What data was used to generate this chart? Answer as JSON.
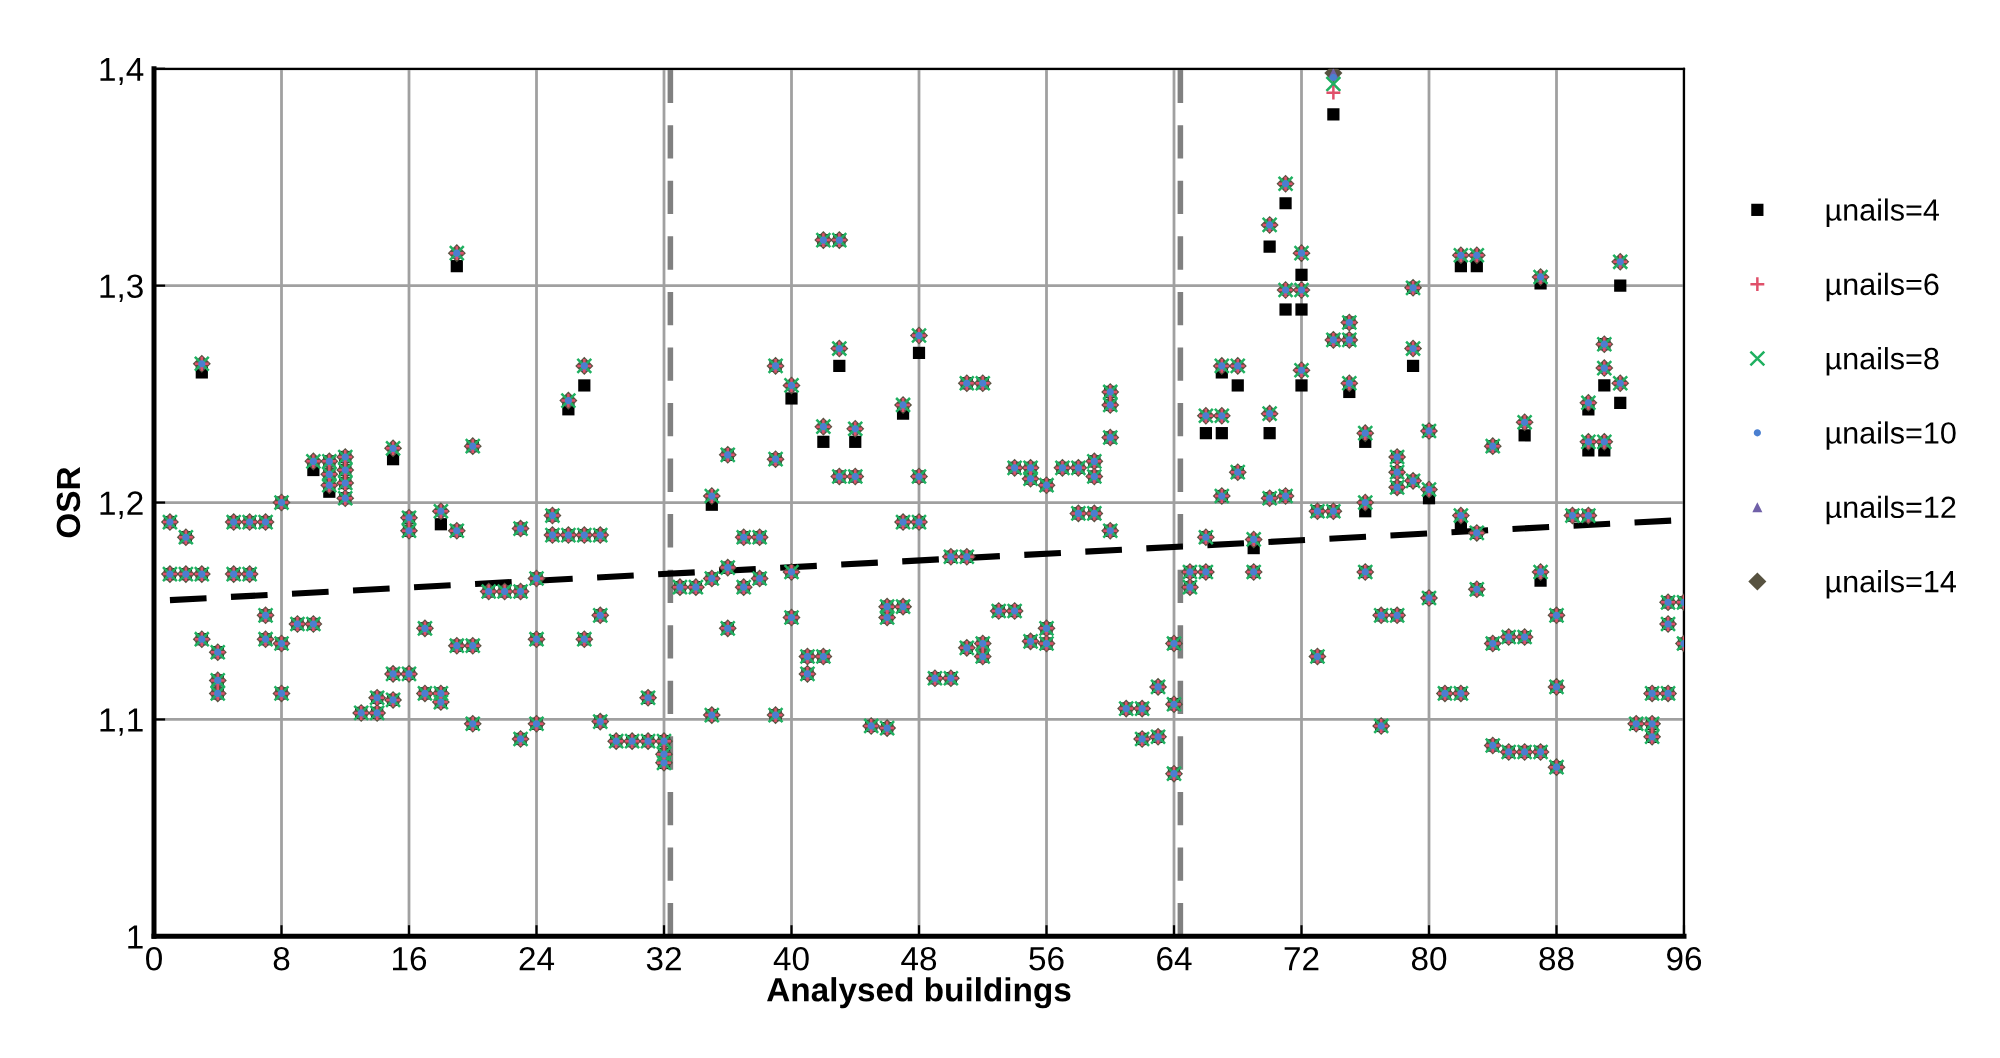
{
  "chart_data": {
    "type": "scatter",
    "xlabel": "Analysed buildings",
    "ylabel": "OSR",
    "xlim": [
      0,
      96
    ],
    "xticks": [
      0,
      8,
      16,
      24,
      32,
      40,
      48,
      56,
      64,
      72,
      80,
      88,
      96
    ],
    "ylim": [
      1,
      1.4
    ],
    "yticks": [
      1,
      {
        "value": 1.1,
        "label": "1,1"
      },
      {
        "value": 1.2,
        "label": "1,2"
      },
      {
        "value": 1.3,
        "label": "1,3"
      },
      {
        "value": 1.4,
        "label": "1,4"
      }
    ],
    "grid": true,
    "legend": "right",
    "x": [
      1,
      1,
      2,
      2,
      3,
      3,
      3,
      4,
      4,
      4,
      5,
      5,
      6,
      6,
      7,
      7,
      7,
      8,
      8,
      8,
      9,
      10,
      10,
      11,
      11,
      11,
      12,
      12,
      12,
      12,
      13,
      14,
      14,
      15,
      15,
      15,
      16,
      16,
      16,
      17,
      17,
      18,
      18,
      18,
      19,
      19,
      19,
      20,
      20,
      20,
      21,
      22,
      23,
      23,
      23,
      24,
      24,
      24,
      25,
      25,
      26,
      26,
      27,
      27,
      27,
      28,
      28,
      28,
      29,
      30,
      31,
      31,
      32,
      32,
      32,
      33,
      34,
      35,
      35,
      35,
      36,
      36,
      36,
      37,
      37,
      38,
      38,
      39,
      39,
      39,
      40,
      40,
      40,
      41,
      41,
      42,
      42,
      42,
      43,
      43,
      43,
      44,
      44,
      45,
      46,
      46,
      46,
      47,
      47,
      47,
      48,
      48,
      48,
      49,
      50,
      50,
      51,
      51,
      51,
      52,
      52,
      52,
      53,
      54,
      54,
      55,
      55,
      55,
      56,
      56,
      56,
      57,
      58,
      58,
      59,
      59,
      59,
      60,
      60,
      60,
      60,
      61,
      62,
      62,
      63,
      63,
      64,
      64,
      64,
      65,
      65,
      66,
      66,
      66,
      67,
      67,
      67,
      68,
      68,
      69,
      69,
      70,
      70,
      70,
      71,
      71,
      71,
      72,
      72,
      72,
      73,
      73,
      74,
      74,
      74,
      75,
      75,
      75,
      76,
      76,
      76,
      77,
      77,
      78,
      78,
      78,
      78,
      79,
      79,
      79,
      80,
      80,
      80,
      81,
      82,
      82,
      82,
      83,
      83,
      83,
      84,
      84,
      84,
      85,
      85,
      86,
      86,
      86,
      87,
      87,
      87,
      88,
      88,
      88,
      89,
      90,
      90,
      90,
      91,
      91,
      91,
      92,
      92,
      93,
      94,
      94,
      94,
      95,
      95,
      95,
      96,
      96
    ],
    "series": [
      {
        "name": "µnails=4",
        "color": "#000000",
        "marker": "square",
        "values": [
          1.191,
          1.167,
          1.184,
          1.167,
          1.26,
          1.167,
          1.137,
          1.131,
          1.118,
          1.112,
          1.191,
          1.167,
          1.191,
          1.167,
          1.191,
          1.148,
          1.137,
          1.2,
          1.135,
          1.112,
          1.144,
          1.215,
          1.144,
          1.219,
          1.213,
          1.205,
          1.221,
          1.215,
          1.209,
          1.202,
          1.103,
          1.11,
          1.103,
          1.22,
          1.121,
          1.109,
          1.193,
          1.187,
          1.121,
          1.142,
          1.112,
          1.19,
          1.112,
          1.108,
          1.309,
          1.187,
          1.134,
          1.226,
          1.134,
          1.098,
          1.159,
          1.159,
          1.188,
          1.159,
          1.091,
          1.165,
          1.137,
          1.098,
          1.194,
          1.185,
          1.243,
          1.185,
          1.254,
          1.185,
          1.137,
          1.185,
          1.148,
          1.099,
          1.09,
          1.09,
          1.11,
          1.09,
          1.09,
          1.084,
          1.08,
          1.161,
          1.161,
          1.199,
          1.165,
          1.102,
          1.222,
          1.17,
          1.142,
          1.184,
          1.161,
          1.184,
          1.165,
          1.263,
          1.22,
          1.102,
          1.248,
          1.168,
          1.147,
          1.129,
          1.121,
          1.321,
          1.228,
          1.129,
          1.321,
          1.263,
          1.212,
          1.228,
          1.212,
          1.097,
          1.152,
          1.147,
          1.096,
          1.241,
          1.191,
          1.152,
          1.269,
          1.212,
          1.191,
          1.119,
          1.175,
          1.119,
          1.255,
          1.175,
          1.133,
          1.255,
          1.135,
          1.129,
          1.15,
          1.216,
          1.15,
          1.216,
          1.211,
          1.136,
          1.208,
          1.142,
          1.135,
          1.216,
          1.216,
          1.195,
          1.219,
          1.212,
          1.195,
          1.251,
          1.245,
          1.23,
          1.187,
          1.105,
          1.105,
          1.091,
          1.115,
          1.092,
          1.135,
          1.107,
          1.075,
          1.168,
          1.161,
          1.232,
          1.184,
          1.168,
          1.26,
          1.232,
          1.203,
          1.254,
          1.214,
          1.179,
          1.168,
          1.318,
          1.232,
          1.202,
          1.338,
          1.289,
          1.203,
          1.305,
          1.289,
          1.254,
          1.196,
          1.129,
          1.379,
          1.275,
          1.196,
          1.283,
          1.275,
          1.251,
          1.228,
          1.196,
          1.168,
          1.148,
          1.097,
          1.221,
          1.214,
          1.207,
          1.148,
          1.299,
          1.263,
          1.21,
          1.233,
          1.202,
          1.156,
          1.112,
          1.309,
          1.19,
          1.112,
          1.309,
          1.186,
          1.16,
          1.226,
          1.135,
          1.088,
          1.138,
          1.085,
          1.231,
          1.138,
          1.085,
          1.301,
          1.164,
          1.085,
          1.148,
          1.115,
          1.078,
          1.194,
          1.243,
          1.224,
          1.194,
          1.273,
          1.254,
          1.224,
          1.3,
          1.246,
          1.098,
          1.112,
          1.098,
          1.092,
          1.154,
          1.144,
          1.112,
          1.154,
          1.135
        ]
      },
      {
        "name": "µnails=6",
        "color": "#e0506a",
        "marker": "plus",
        "values": [
          1.191,
          1.167,
          1.184,
          1.167,
          1.264,
          1.167,
          1.137,
          1.131,
          1.118,
          1.112,
          1.191,
          1.167,
          1.191,
          1.167,
          1.191,
          1.148,
          1.137,
          1.2,
          1.135,
          1.112,
          1.144,
          1.219,
          1.144,
          1.219,
          1.213,
          1.208,
          1.221,
          1.215,
          1.209,
          1.202,
          1.103,
          1.11,
          1.103,
          1.225,
          1.121,
          1.109,
          1.193,
          1.187,
          1.121,
          1.142,
          1.112,
          1.196,
          1.112,
          1.108,
          1.315,
          1.187,
          1.134,
          1.226,
          1.134,
          1.098,
          1.159,
          1.159,
          1.188,
          1.159,
          1.091,
          1.165,
          1.137,
          1.098,
          1.194,
          1.185,
          1.247,
          1.185,
          1.263,
          1.185,
          1.137,
          1.185,
          1.148,
          1.099,
          1.09,
          1.09,
          1.11,
          1.09,
          1.09,
          1.084,
          1.08,
          1.161,
          1.161,
          1.203,
          1.165,
          1.102,
          1.222,
          1.17,
          1.142,
          1.184,
          1.161,
          1.184,
          1.165,
          1.263,
          1.22,
          1.102,
          1.254,
          1.168,
          1.147,
          1.129,
          1.121,
          1.321,
          1.235,
          1.129,
          1.321,
          1.271,
          1.212,
          1.234,
          1.212,
          1.097,
          1.152,
          1.147,
          1.096,
          1.245,
          1.191,
          1.152,
          1.277,
          1.212,
          1.191,
          1.119,
          1.175,
          1.119,
          1.255,
          1.175,
          1.133,
          1.255,
          1.135,
          1.129,
          1.15,
          1.216,
          1.15,
          1.216,
          1.211,
          1.136,
          1.208,
          1.142,
          1.135,
          1.216,
          1.216,
          1.195,
          1.219,
          1.212,
          1.195,
          1.251,
          1.245,
          1.23,
          1.187,
          1.105,
          1.105,
          1.091,
          1.115,
          1.092,
          1.135,
          1.107,
          1.075,
          1.168,
          1.161,
          1.24,
          1.184,
          1.168,
          1.263,
          1.24,
          1.203,
          1.263,
          1.214,
          1.183,
          1.168,
          1.328,
          1.241,
          1.202,
          1.347,
          1.298,
          1.203,
          1.315,
          1.298,
          1.261,
          1.196,
          1.129,
          1.389,
          1.275,
          1.196,
          1.283,
          1.275,
          1.255,
          1.232,
          1.2,
          1.168,
          1.148,
          1.097,
          1.221,
          1.214,
          1.207,
          1.148,
          1.299,
          1.271,
          1.21,
          1.233,
          1.206,
          1.156,
          1.112,
          1.314,
          1.194,
          1.112,
          1.314,
          1.186,
          1.16,
          1.226,
          1.135,
          1.088,
          1.138,
          1.085,
          1.237,
          1.138,
          1.085,
          1.304,
          1.168,
          1.085,
          1.148,
          1.115,
          1.078,
          1.194,
          1.246,
          1.228,
          1.194,
          1.273,
          1.262,
          1.228,
          1.311,
          1.255,
          1.098,
          1.112,
          1.098,
          1.092,
          1.154,
          1.144,
          1.112,
          1.154,
          1.135
        ]
      },
      {
        "name": "µnails=8",
        "color": "#1fb060",
        "marker": "cross",
        "values": [
          1.191,
          1.167,
          1.184,
          1.167,
          1.264,
          1.167,
          1.137,
          1.131,
          1.118,
          1.112,
          1.191,
          1.167,
          1.191,
          1.167,
          1.191,
          1.148,
          1.137,
          1.2,
          1.135,
          1.112,
          1.144,
          1.219,
          1.144,
          1.219,
          1.213,
          1.208,
          1.221,
          1.215,
          1.209,
          1.202,
          1.103,
          1.11,
          1.103,
          1.225,
          1.121,
          1.109,
          1.193,
          1.187,
          1.121,
          1.142,
          1.112,
          1.196,
          1.112,
          1.108,
          1.315,
          1.187,
          1.134,
          1.226,
          1.134,
          1.098,
          1.159,
          1.159,
          1.188,
          1.159,
          1.091,
          1.165,
          1.137,
          1.098,
          1.194,
          1.185,
          1.247,
          1.185,
          1.263,
          1.185,
          1.137,
          1.185,
          1.148,
          1.099,
          1.09,
          1.09,
          1.11,
          1.09,
          1.09,
          1.084,
          1.08,
          1.161,
          1.161,
          1.203,
          1.165,
          1.102,
          1.222,
          1.17,
          1.142,
          1.184,
          1.161,
          1.184,
          1.165,
          1.263,
          1.22,
          1.102,
          1.254,
          1.168,
          1.147,
          1.129,
          1.121,
          1.321,
          1.235,
          1.129,
          1.321,
          1.271,
          1.212,
          1.234,
          1.212,
          1.097,
          1.152,
          1.147,
          1.096,
          1.245,
          1.191,
          1.152,
          1.277,
          1.212,
          1.191,
          1.119,
          1.175,
          1.119,
          1.255,
          1.175,
          1.133,
          1.255,
          1.135,
          1.129,
          1.15,
          1.216,
          1.15,
          1.216,
          1.211,
          1.136,
          1.208,
          1.142,
          1.135,
          1.216,
          1.216,
          1.195,
          1.219,
          1.212,
          1.195,
          1.251,
          1.245,
          1.23,
          1.187,
          1.105,
          1.105,
          1.091,
          1.115,
          1.092,
          1.135,
          1.107,
          1.075,
          1.168,
          1.161,
          1.24,
          1.184,
          1.168,
          1.263,
          1.24,
          1.203,
          1.263,
          1.214,
          1.183,
          1.168,
          1.328,
          1.241,
          1.202,
          1.347,
          1.298,
          1.203,
          1.315,
          1.298,
          1.261,
          1.196,
          1.129,
          1.393,
          1.275,
          1.196,
          1.283,
          1.275,
          1.255,
          1.232,
          1.2,
          1.168,
          1.148,
          1.097,
          1.221,
          1.214,
          1.207,
          1.148,
          1.299,
          1.271,
          1.21,
          1.233,
          1.206,
          1.156,
          1.112,
          1.314,
          1.194,
          1.112,
          1.314,
          1.186,
          1.16,
          1.226,
          1.135,
          1.088,
          1.138,
          1.085,
          1.237,
          1.138,
          1.085,
          1.304,
          1.168,
          1.085,
          1.148,
          1.115,
          1.078,
          1.194,
          1.246,
          1.228,
          1.194,
          1.273,
          1.262,
          1.228,
          1.311,
          1.255,
          1.098,
          1.112,
          1.098,
          1.092,
          1.154,
          1.144,
          1.112,
          1.154,
          1.135
        ]
      },
      {
        "name": "µnails=10",
        "color": "#4a7fd0",
        "marker": "circle",
        "values": [
          1.191,
          1.167,
          1.184,
          1.167,
          1.264,
          1.167,
          1.137,
          1.131,
          1.118,
          1.112,
          1.191,
          1.167,
          1.191,
          1.167,
          1.191,
          1.148,
          1.137,
          1.2,
          1.135,
          1.112,
          1.144,
          1.219,
          1.144,
          1.219,
          1.213,
          1.208,
          1.221,
          1.215,
          1.209,
          1.202,
          1.103,
          1.11,
          1.103,
          1.225,
          1.121,
          1.109,
          1.193,
          1.187,
          1.121,
          1.142,
          1.112,
          1.196,
          1.112,
          1.108,
          1.315,
          1.187,
          1.134,
          1.226,
          1.134,
          1.098,
          1.159,
          1.159,
          1.188,
          1.159,
          1.091,
          1.165,
          1.137,
          1.098,
          1.194,
          1.185,
          1.247,
          1.185,
          1.263,
          1.185,
          1.137,
          1.185,
          1.148,
          1.099,
          1.09,
          1.09,
          1.11,
          1.09,
          1.09,
          1.084,
          1.08,
          1.161,
          1.161,
          1.203,
          1.165,
          1.102,
          1.222,
          1.17,
          1.142,
          1.184,
          1.161,
          1.184,
          1.165,
          1.263,
          1.22,
          1.102,
          1.254,
          1.168,
          1.147,
          1.129,
          1.121,
          1.321,
          1.235,
          1.129,
          1.321,
          1.271,
          1.212,
          1.234,
          1.212,
          1.097,
          1.152,
          1.147,
          1.096,
          1.245,
          1.191,
          1.152,
          1.277,
          1.212,
          1.191,
          1.119,
          1.175,
          1.119,
          1.255,
          1.175,
          1.133,
          1.255,
          1.135,
          1.129,
          1.15,
          1.216,
          1.15,
          1.216,
          1.211,
          1.136,
          1.208,
          1.142,
          1.135,
          1.216,
          1.216,
          1.195,
          1.219,
          1.212,
          1.195,
          1.251,
          1.245,
          1.23,
          1.187,
          1.105,
          1.105,
          1.091,
          1.115,
          1.092,
          1.135,
          1.107,
          1.075,
          1.168,
          1.161,
          1.24,
          1.184,
          1.168,
          1.263,
          1.24,
          1.203,
          1.263,
          1.214,
          1.183,
          1.168,
          1.328,
          1.241,
          1.202,
          1.347,
          1.298,
          1.203,
          1.315,
          1.298,
          1.261,
          1.196,
          1.129,
          1.396,
          1.275,
          1.196,
          1.283,
          1.275,
          1.255,
          1.232,
          1.2,
          1.168,
          1.148,
          1.097,
          1.221,
          1.214,
          1.207,
          1.148,
          1.299,
          1.271,
          1.21,
          1.233,
          1.206,
          1.156,
          1.112,
          1.314,
          1.194,
          1.112,
          1.314,
          1.186,
          1.16,
          1.226,
          1.135,
          1.088,
          1.138,
          1.085,
          1.237,
          1.138,
          1.085,
          1.304,
          1.168,
          1.085,
          1.148,
          1.115,
          1.078,
          1.194,
          1.246,
          1.228,
          1.194,
          1.273,
          1.262,
          1.228,
          1.311,
          1.255,
          1.098,
          1.112,
          1.098,
          1.092,
          1.154,
          1.144,
          1.112,
          1.154,
          1.135
        ]
      },
      {
        "name": "µnails=12",
        "color": "#7060a8",
        "marker": "triangle",
        "values": [
          1.191,
          1.167,
          1.184,
          1.167,
          1.264,
          1.167,
          1.137,
          1.131,
          1.118,
          1.112,
          1.191,
          1.167,
          1.191,
          1.167,
          1.191,
          1.148,
          1.137,
          1.2,
          1.135,
          1.112,
          1.144,
          1.219,
          1.144,
          1.219,
          1.213,
          1.208,
          1.221,
          1.215,
          1.209,
          1.202,
          1.103,
          1.11,
          1.103,
          1.225,
          1.121,
          1.109,
          1.193,
          1.187,
          1.121,
          1.142,
          1.112,
          1.196,
          1.112,
          1.108,
          1.315,
          1.187,
          1.134,
          1.226,
          1.134,
          1.098,
          1.159,
          1.159,
          1.188,
          1.159,
          1.091,
          1.165,
          1.137,
          1.098,
          1.194,
          1.185,
          1.247,
          1.185,
          1.263,
          1.185,
          1.137,
          1.185,
          1.148,
          1.099,
          1.09,
          1.09,
          1.11,
          1.09,
          1.09,
          1.084,
          1.08,
          1.161,
          1.161,
          1.203,
          1.165,
          1.102,
          1.222,
          1.17,
          1.142,
          1.184,
          1.161,
          1.184,
          1.165,
          1.263,
          1.22,
          1.102,
          1.254,
          1.168,
          1.147,
          1.129,
          1.121,
          1.321,
          1.235,
          1.129,
          1.321,
          1.271,
          1.212,
          1.234,
          1.212,
          1.097,
          1.152,
          1.147,
          1.096,
          1.245,
          1.191,
          1.152,
          1.277,
          1.212,
          1.191,
          1.119,
          1.175,
          1.119,
          1.255,
          1.175,
          1.133,
          1.255,
          1.135,
          1.129,
          1.15,
          1.216,
          1.15,
          1.216,
          1.211,
          1.136,
          1.208,
          1.142,
          1.135,
          1.216,
          1.216,
          1.195,
          1.219,
          1.212,
          1.195,
          1.251,
          1.245,
          1.23,
          1.187,
          1.105,
          1.105,
          1.091,
          1.115,
          1.092,
          1.135,
          1.107,
          1.075,
          1.168,
          1.161,
          1.24,
          1.184,
          1.168,
          1.263,
          1.24,
          1.203,
          1.263,
          1.214,
          1.183,
          1.168,
          1.328,
          1.241,
          1.202,
          1.347,
          1.298,
          1.203,
          1.315,
          1.298,
          1.261,
          1.196,
          1.129,
          1.398,
          1.275,
          1.196,
          1.283,
          1.275,
          1.255,
          1.232,
          1.2,
          1.168,
          1.148,
          1.097,
          1.221,
          1.214,
          1.207,
          1.148,
          1.299,
          1.271,
          1.21,
          1.233,
          1.206,
          1.156,
          1.112,
          1.314,
          1.194,
          1.112,
          1.314,
          1.186,
          1.16,
          1.226,
          1.135,
          1.088,
          1.138,
          1.085,
          1.237,
          1.138,
          1.085,
          1.304,
          1.168,
          1.085,
          1.148,
          1.115,
          1.078,
          1.194,
          1.246,
          1.228,
          1.194,
          1.273,
          1.262,
          1.228,
          1.311,
          1.255,
          1.098,
          1.112,
          1.098,
          1.092,
          1.154,
          1.144,
          1.112,
          1.154,
          1.135
        ]
      },
      {
        "name": "µnails=14",
        "color": "#575240",
        "marker": "diamond",
        "values": [
          1.191,
          1.167,
          1.184,
          1.167,
          1.264,
          1.167,
          1.137,
          1.131,
          1.118,
          1.112,
          1.191,
          1.167,
          1.191,
          1.167,
          1.191,
          1.148,
          1.137,
          1.2,
          1.135,
          1.112,
          1.144,
          1.219,
          1.144,
          1.219,
          1.213,
          1.208,
          1.221,
          1.215,
          1.209,
          1.202,
          1.103,
          1.11,
          1.103,
          1.225,
          1.121,
          1.109,
          1.193,
          1.187,
          1.121,
          1.142,
          1.112,
          1.196,
          1.112,
          1.108,
          1.315,
          1.187,
          1.134,
          1.226,
          1.134,
          1.098,
          1.159,
          1.159,
          1.188,
          1.159,
          1.091,
          1.165,
          1.137,
          1.098,
          1.194,
          1.185,
          1.247,
          1.185,
          1.263,
          1.185,
          1.137,
          1.185,
          1.148,
          1.099,
          1.09,
          1.09,
          1.11,
          1.09,
          1.09,
          1.084,
          1.08,
          1.161,
          1.161,
          1.203,
          1.165,
          1.102,
          1.222,
          1.17,
          1.142,
          1.184,
          1.161,
          1.184,
          1.165,
          1.263,
          1.22,
          1.102,
          1.254,
          1.168,
          1.147,
          1.129,
          1.121,
          1.321,
          1.235,
          1.129,
          1.321,
          1.271,
          1.212,
          1.234,
          1.212,
          1.097,
          1.152,
          1.147,
          1.096,
          1.245,
          1.191,
          1.152,
          1.277,
          1.212,
          1.191,
          1.119,
          1.175,
          1.119,
          1.255,
          1.175,
          1.133,
          1.255,
          1.135,
          1.129,
          1.15,
          1.216,
          1.15,
          1.216,
          1.211,
          1.136,
          1.208,
          1.142,
          1.135,
          1.216,
          1.216,
          1.195,
          1.219,
          1.212,
          1.195,
          1.251,
          1.245,
          1.23,
          1.187,
          1.105,
          1.105,
          1.091,
          1.115,
          1.092,
          1.135,
          1.107,
          1.075,
          1.168,
          1.161,
          1.24,
          1.184,
          1.168,
          1.263,
          1.24,
          1.203,
          1.263,
          1.214,
          1.183,
          1.168,
          1.328,
          1.241,
          1.202,
          1.347,
          1.298,
          1.203,
          1.315,
          1.298,
          1.261,
          1.196,
          1.129,
          1.398,
          1.275,
          1.196,
          1.283,
          1.275,
          1.255,
          1.232,
          1.2,
          1.168,
          1.148,
          1.097,
          1.221,
          1.214,
          1.207,
          1.148,
          1.299,
          1.271,
          1.21,
          1.233,
          1.206,
          1.156,
          1.112,
          1.314,
          1.194,
          1.112,
          1.314,
          1.186,
          1.16,
          1.226,
          1.135,
          1.088,
          1.138,
          1.085,
          1.237,
          1.138,
          1.085,
          1.304,
          1.168,
          1.085,
          1.148,
          1.115,
          1.078,
          1.194,
          1.246,
          1.228,
          1.194,
          1.273,
          1.262,
          1.228,
          1.311,
          1.255,
          1.098,
          1.112,
          1.098,
          1.092,
          1.154,
          1.144,
          1.112,
          1.154,
          1.135
        ]
      },
      {
        "type": "line",
        "color": "#000000",
        "line_style": "dashed",
        "marker": "none",
        "x": [
          1,
          96
        ],
        "values": [
          1.155,
          1.192
        ]
      }
    ],
    "ref_lines": [
      {
        "axis": "x",
        "value": 32.4,
        "color": "#808080",
        "line_style": "dashed"
      },
      {
        "axis": "x",
        "value": 64.4,
        "color": "#808080",
        "line_style": "dashed"
      }
    ]
  }
}
